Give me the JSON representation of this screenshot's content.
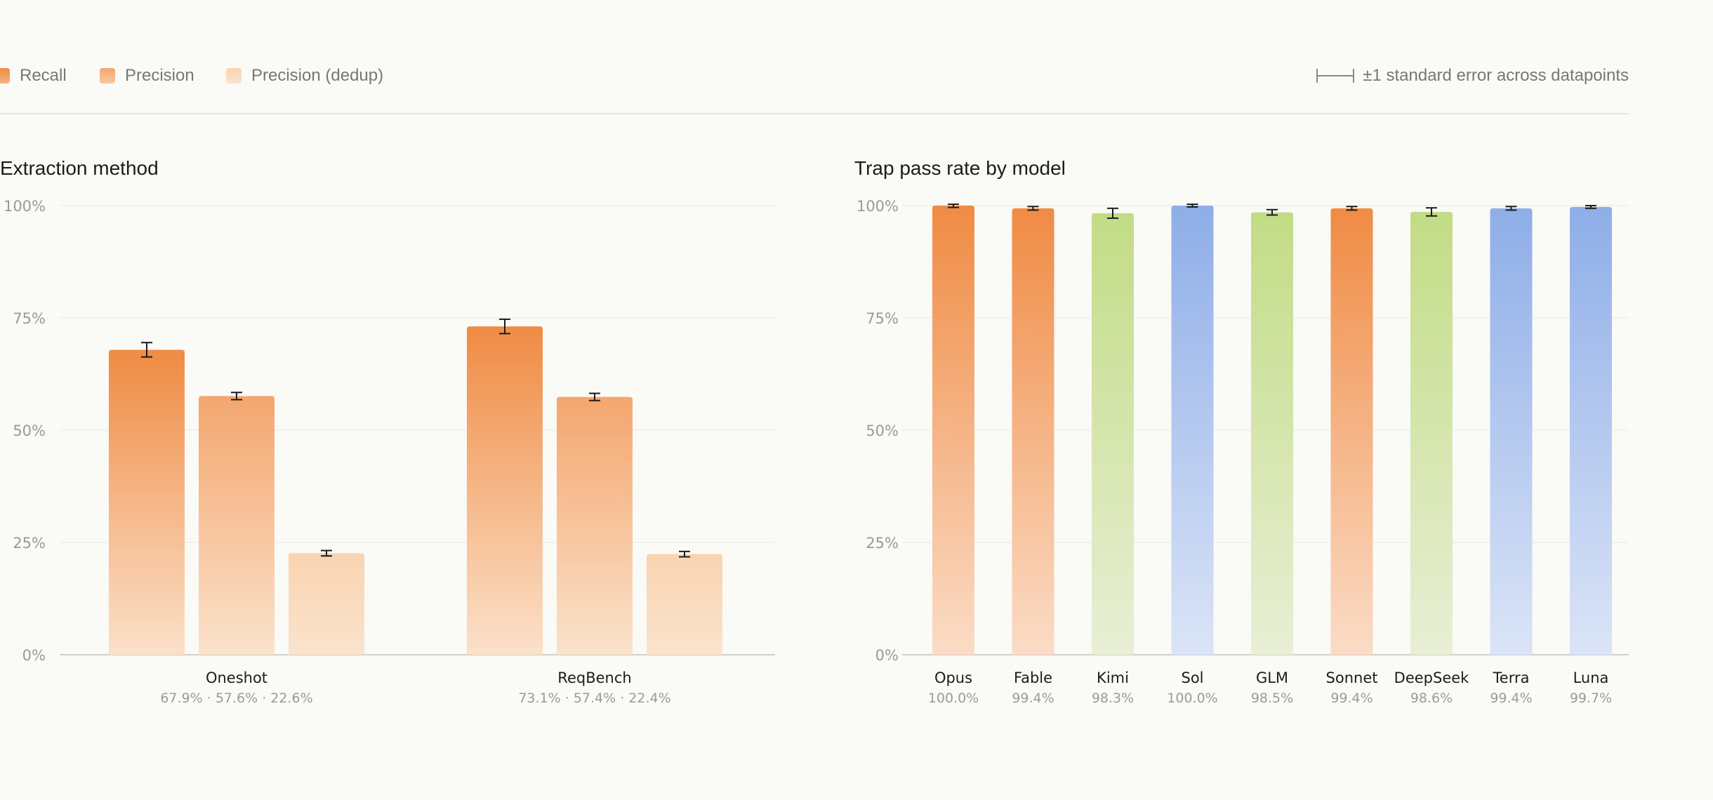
{
  "legend": {
    "items": [
      {
        "label": "Recall",
        "color": "#f08c47"
      },
      {
        "label": "Precision",
        "color": "#f4a56c"
      },
      {
        "label": "Precision (dedup)",
        "color": "#f9d5b3"
      }
    ],
    "error_note": "±1 standard error across datapoints"
  },
  "chart_data": [
    {
      "type": "bar",
      "title": "Extraction method",
      "categories": [
        "Oneshot",
        "ReqBench"
      ],
      "sublabels": [
        "67.9% · 57.6% · 22.6%",
        "73.1% · 57.4% · 22.4%"
      ],
      "series": [
        {
          "name": "Recall",
          "values": [
            67.9,
            73.1
          ],
          "errors": [
            1.6,
            1.6
          ],
          "color_top": "#f08b44",
          "color_bottom": "#fbe1c9"
        },
        {
          "name": "Precision",
          "values": [
            57.6,
            57.4
          ],
          "errors": [
            0.8,
            0.8
          ],
          "color_top": "#f4a66e",
          "color_bottom": "#fbe2cb"
        },
        {
          "name": "Precision (dedup)",
          "values": [
            22.6,
            22.4
          ],
          "errors": [
            0.6,
            0.6
          ],
          "color_top": "#f9d3b0",
          "color_bottom": "#fbe3cd"
        }
      ],
      "yticks": [
        "0%",
        "25%",
        "50%",
        "75%",
        "100%"
      ],
      "ylim": [
        0,
        100
      ],
      "grid": true
    },
    {
      "type": "bar",
      "title": "Trap pass rate by model",
      "categories": [
        "Opus",
        "Fable",
        "Kimi",
        "Sol",
        "GLM",
        "Sonnet",
        "DeepSeek",
        "Terra",
        "Luna"
      ],
      "sublabels": [
        "100.0%",
        "99.4%",
        "98.3%",
        "100.0%",
        "98.5%",
        "99.4%",
        "98.6%",
        "99.4%",
        "99.7%"
      ],
      "values": [
        100.0,
        99.4,
        98.3,
        100.0,
        98.5,
        99.4,
        98.6,
        99.4,
        99.7
      ],
      "errors": [
        0.4,
        0.4,
        1.1,
        0.3,
        0.6,
        0.4,
        0.9,
        0.4,
        0.3
      ],
      "colors": [
        {
          "top": "#f08b44",
          "bottom": "#fbdcc6"
        },
        {
          "top": "#f08b44",
          "bottom": "#fbdcc6"
        },
        {
          "top": "#c2dc85",
          "bottom": "#e8efd5"
        },
        {
          "top": "#8eaee8",
          "bottom": "#dbe4f7"
        },
        {
          "top": "#c2dc85",
          "bottom": "#e8efd5"
        },
        {
          "top": "#f08b44",
          "bottom": "#fbdcc6"
        },
        {
          "top": "#c2dc85",
          "bottom": "#e8efd5"
        },
        {
          "top": "#8eaee8",
          "bottom": "#dbe4f7"
        },
        {
          "top": "#8eaee8",
          "bottom": "#dbe4f7"
        }
      ],
      "yticks": [
        "0%",
        "25%",
        "50%",
        "75%",
        "100%"
      ],
      "ylim": [
        0,
        100
      ],
      "grid": true
    }
  ]
}
